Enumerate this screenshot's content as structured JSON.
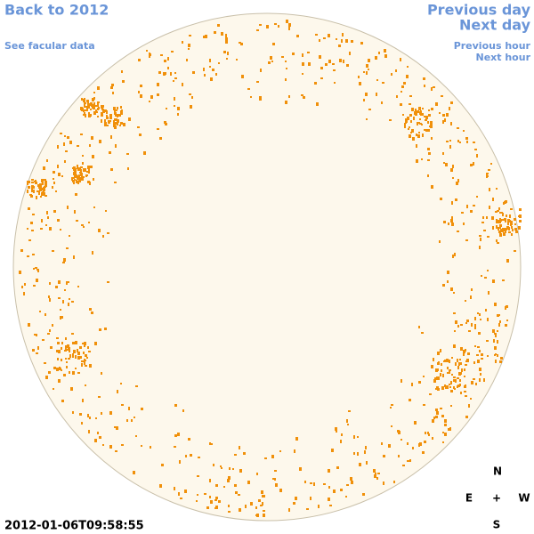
{
  "nav": {
    "back": "Back to 2012",
    "facular": "See facular data",
    "previous_day": "Previous day",
    "next_day": "Next day",
    "previous_hour": "Previous hour",
    "next_hour": "Next hour"
  },
  "timestamp": "2012-01-06T09:58:55",
  "compass": {
    "north": "N",
    "east": "E",
    "center": "+",
    "west": "W",
    "south": "S"
  }
}
